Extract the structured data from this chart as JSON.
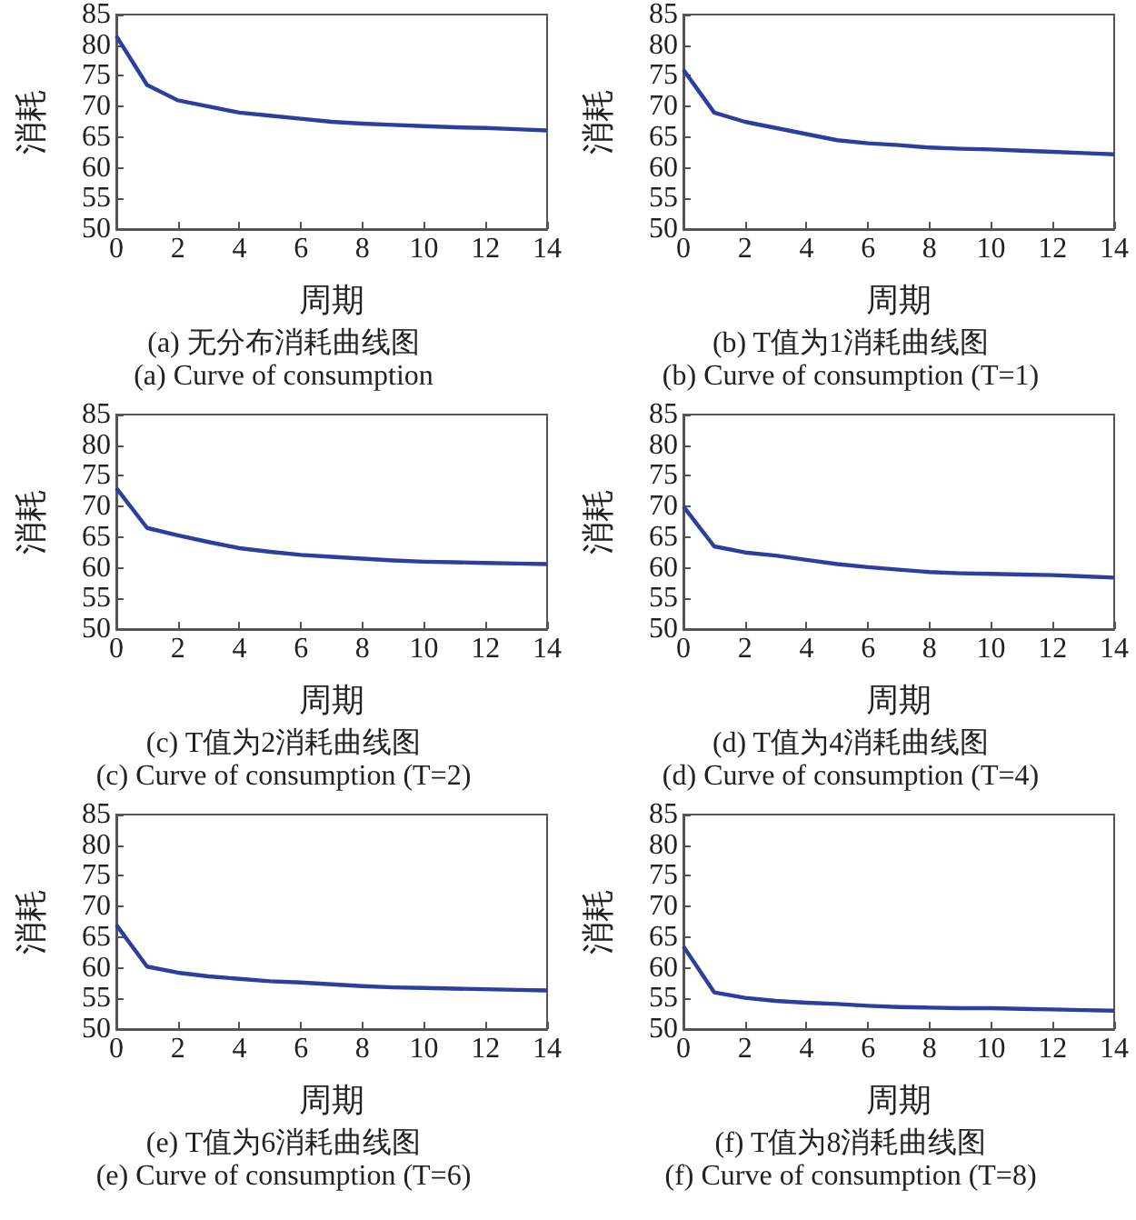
{
  "chart_data": [
    {
      "type": "line",
      "title": "(a) 无分布消耗曲线图",
      "subtitle": "(a) Curve of consumption",
      "xlabel": "周期",
      "ylabel": "消耗",
      "x": [
        0,
        1,
        2,
        3,
        4,
        5,
        6,
        7,
        8,
        9,
        10,
        11,
        12,
        13,
        14
      ],
      "values": [
        81.5,
        73.5,
        71,
        70,
        69,
        68.5,
        68,
        67.5,
        67.2,
        67,
        66.8,
        66.6,
        66.5,
        66.3,
        66.1
      ],
      "color": "#2b3fa0",
      "marker": "none",
      "xlim": [
        0,
        14
      ],
      "xticks": [
        0,
        2,
        4,
        6,
        8,
        10,
        12,
        14
      ],
      "ylim": [
        50,
        85
      ],
      "yticks": [
        50,
        55,
        60,
        65,
        70,
        75,
        80,
        85
      ]
    },
    {
      "type": "line",
      "title": "(b) T值为1消耗曲线图",
      "subtitle": "(b) Curve of consumption (T=1)",
      "xlabel": "周期",
      "ylabel": "消耗",
      "x": [
        0,
        1,
        2,
        3,
        4,
        5,
        6,
        7,
        8,
        9,
        10,
        11,
        12,
        13,
        14
      ],
      "values": [
        76,
        69,
        67.5,
        66.5,
        65.5,
        64.5,
        64,
        63.7,
        63.3,
        63.1,
        63,
        62.8,
        62.6,
        62.4,
        62.2
      ],
      "color": "#2b3fa0",
      "marker": "none",
      "xlim": [
        0,
        14
      ],
      "xticks": [
        0,
        2,
        4,
        6,
        8,
        10,
        12,
        14
      ],
      "ylim": [
        50,
        85
      ],
      "yticks": [
        50,
        55,
        60,
        65,
        70,
        75,
        80,
        85
      ]
    },
    {
      "type": "line",
      "title": "(c) T值为2消耗曲线图",
      "subtitle": "(c) Curve of consumption (T=2)",
      "xlabel": "周期",
      "ylabel": "消耗",
      "x": [
        0,
        1,
        2,
        3,
        4,
        5,
        6,
        7,
        8,
        9,
        10,
        11,
        12,
        13,
        14
      ],
      "values": [
        73,
        66.5,
        65.3,
        64.2,
        63.2,
        62.6,
        62.1,
        61.8,
        61.5,
        61.2,
        61,
        60.9,
        60.8,
        60.7,
        60.6
      ],
      "color": "#2b3fa0",
      "marker": "none",
      "xlim": [
        0,
        14
      ],
      "xticks": [
        0,
        2,
        4,
        6,
        8,
        10,
        12,
        14
      ],
      "ylim": [
        50,
        85
      ],
      "yticks": [
        50,
        55,
        60,
        65,
        70,
        75,
        80,
        85
      ]
    },
    {
      "type": "line",
      "title": "(d) T值为4消耗曲线图",
      "subtitle": "(d) Curve of consumption (T=4)",
      "xlabel": "周期",
      "ylabel": "消耗",
      "x": [
        0,
        1,
        2,
        3,
        4,
        5,
        6,
        7,
        8,
        9,
        10,
        11,
        12,
        13,
        14
      ],
      "values": [
        70,
        63.5,
        62.5,
        62,
        61.3,
        60.6,
        60.1,
        59.7,
        59.3,
        59.1,
        59,
        58.9,
        58.8,
        58.6,
        58.4
      ],
      "color": "#2b3fa0",
      "marker": "none",
      "xlim": [
        0,
        14
      ],
      "xticks": [
        0,
        2,
        4,
        6,
        8,
        10,
        12,
        14
      ],
      "ylim": [
        50,
        85
      ],
      "yticks": [
        50,
        55,
        60,
        65,
        70,
        75,
        80,
        85
      ]
    },
    {
      "type": "line",
      "title": "(e) T值为6消耗曲线图",
      "subtitle": "(e) Curve of consumption (T=6)",
      "xlabel": "周期",
      "ylabel": "消耗",
      "x": [
        0,
        1,
        2,
        3,
        4,
        5,
        6,
        7,
        8,
        9,
        10,
        11,
        12,
        13,
        14
      ],
      "values": [
        67,
        60.2,
        59.2,
        58.6,
        58.2,
        57.8,
        57.6,
        57.3,
        57,
        56.8,
        56.7,
        56.6,
        56.5,
        56.4,
        56.3
      ],
      "color": "#2b3fa0",
      "marker": "none",
      "xlim": [
        0,
        14
      ],
      "xticks": [
        0,
        2,
        4,
        6,
        8,
        10,
        12,
        14
      ],
      "ylim": [
        50,
        85
      ],
      "yticks": [
        50,
        55,
        60,
        65,
        70,
        75,
        80,
        85
      ]
    },
    {
      "type": "line",
      "title": "(f) T值为8消耗曲线图",
      "subtitle": "(f) Curve of consumption (T=8)",
      "xlabel": "周期",
      "ylabel": "消耗",
      "x": [
        0,
        1,
        2,
        3,
        4,
        5,
        6,
        7,
        8,
        9,
        10,
        11,
        12,
        13,
        14
      ],
      "values": [
        63.5,
        56,
        55.1,
        54.6,
        54.3,
        54.1,
        53.8,
        53.6,
        53.5,
        53.4,
        53.4,
        53.3,
        53.2,
        53.1,
        53
      ],
      "color": "#2b3fa0",
      "marker": "none",
      "xlim": [
        0,
        14
      ],
      "xticks": [
        0,
        2,
        4,
        6,
        8,
        10,
        12,
        14
      ],
      "ylim": [
        50,
        85
      ],
      "yticks": [
        50,
        55,
        60,
        65,
        70,
        75,
        80,
        85
      ]
    }
  ]
}
